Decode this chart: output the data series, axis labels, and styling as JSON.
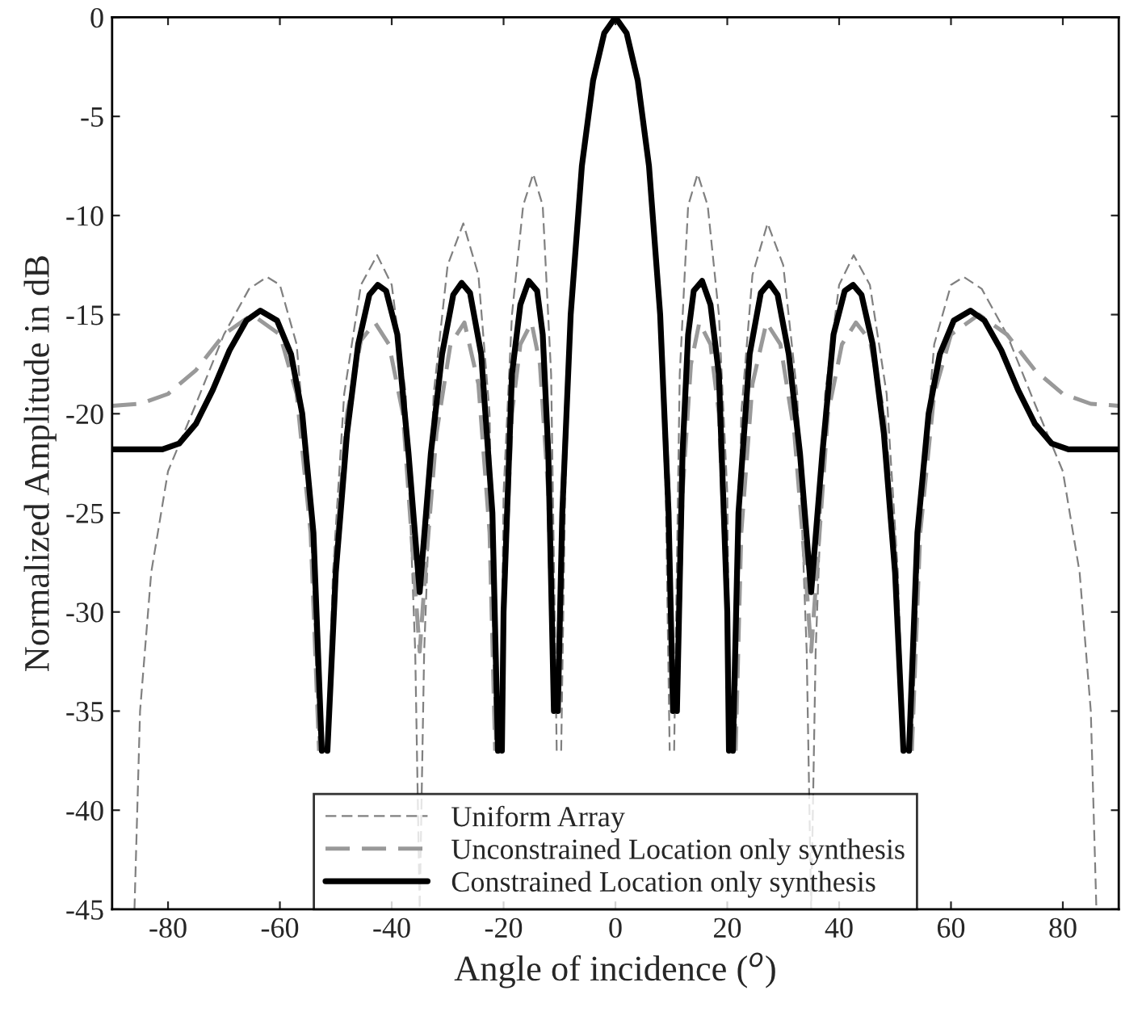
{
  "chart_data": {
    "type": "line",
    "xlabel": "Angle of incidence ($^{o}$)",
    "ylabel": "Normalized Amplitude in dB",
    "xlim": [
      -90,
      90
    ],
    "ylim": [
      -45,
      0
    ],
    "xticks": [
      -80,
      -60,
      -40,
      -20,
      0,
      20,
      40,
      60,
      80
    ],
    "yticks": [
      -45,
      -40,
      -35,
      -30,
      -25,
      -20,
      -15,
      -10,
      -5,
      0
    ],
    "grid": false,
    "legend": "bottom",
    "series": [
      {
        "name": "Uniform Array",
        "color": "#808080",
        "line_style": "dashed",
        "x": [
          -86,
          -85,
          -83,
          -80,
          -75,
          -70,
          -65.5,
          -62.3,
          -60,
          -57,
          -54.5,
          -53,
          -52.2,
          -51.5,
          -50.5,
          -48.5,
          -45.5,
          -42.6,
          -40,
          -37.5,
          -35.8,
          -35,
          -34.2,
          -32.5,
          -30,
          -27.2,
          -24.5,
          -22.5,
          -21.5,
          -21,
          -20.5,
          -20,
          -18.5,
          -16.5,
          -14.7,
          -13,
          -11.5,
          -10.5,
          -10.1,
          -9.7,
          -9,
          -8,
          -6,
          -4,
          -2,
          0,
          2,
          4,
          6,
          8,
          9,
          9.7,
          10.1,
          10.5,
          11.5,
          13,
          14.7,
          16.5,
          18.5,
          20,
          20.5,
          21,
          21.5,
          22.5,
          24.5,
          27.2,
          30,
          32.5,
          34.2,
          35,
          35.8,
          37.5,
          40,
          42.6,
          45.5,
          48.5,
          50.5,
          51.5,
          52.2,
          53,
          54.5,
          57,
          60,
          62.3,
          65.5,
          70,
          75,
          80,
          83,
          85,
          86
        ],
        "values": [
          -45,
          -35,
          -28,
          -22.9,
          -19.5,
          -16,
          -13.7,
          -13.1,
          -13.5,
          -16.5,
          -25,
          -37,
          null,
          -37,
          -28,
          -19,
          -13.5,
          -12,
          -13.5,
          -19,
          -32,
          -45,
          -32,
          -19,
          -12.5,
          -10.4,
          -13,
          -20,
          -37,
          null,
          -37,
          -24,
          -15,
          -9.5,
          -7.9,
          -9.5,
          -18,
          -37,
          null,
          -37,
          -24,
          -16,
          -8,
          -3.5,
          -0.9,
          0,
          -0.9,
          -3.5,
          -8,
          -16,
          -24,
          -37,
          null,
          -37,
          -18,
          -9.5,
          -7.9,
          -9.5,
          -15,
          -24,
          -37,
          null,
          -37,
          -20,
          -13,
          -10.4,
          -12.5,
          -19,
          -32,
          -45,
          -32,
          -19,
          -13.5,
          -12,
          -13.5,
          -19,
          -28,
          -37,
          null,
          -37,
          -25,
          -16.5,
          -13.5,
          -13.1,
          -13.7,
          -16,
          -19.5,
          -22.9,
          -28,
          -35,
          -45
        ]
      },
      {
        "name": "Unconstrained Location only synthesis",
        "color": "#999999",
        "line_style": "dashed",
        "x": [
          -90,
          -85,
          -80,
          -75,
          -70,
          -65,
          -60,
          -57,
          -54.5,
          -53,
          -52.2,
          -51.5,
          -50,
          -48,
          -45.5,
          -43,
          -40.5,
          -38,
          -36,
          -35,
          -34,
          -32,
          -29.5,
          -27,
          -24.5,
          -22.5,
          -21.5,
          -21,
          -20.5,
          -20,
          -18.5,
          -17,
          -15,
          -13.5,
          -12,
          -11,
          -10.6,
          -10.2,
          -9.5,
          -8,
          -6,
          -4,
          -2,
          0,
          2,
          4,
          6,
          8,
          9.5,
          10.2,
          10.6,
          11,
          12,
          13.5,
          15,
          17,
          18.5,
          20,
          20.5,
          21,
          21.5,
          22.5,
          24.5,
          27,
          29.5,
          32,
          34,
          35,
          36,
          38,
          40.5,
          43,
          45.5,
          48,
          50,
          51.5,
          52.2,
          53,
          54.5,
          57,
          60,
          65,
          70,
          75,
          80,
          85,
          90
        ],
        "values": [
          -19.6,
          -19.5,
          -19,
          -17.8,
          -16,
          -15,
          -16,
          -19,
          -26,
          -37,
          null,
          -37,
          -27,
          -20,
          -16.3,
          -15.4,
          -16.5,
          -20,
          -28,
          -32,
          -28,
          -21,
          -16.5,
          -15.4,
          -18.5,
          -26,
          -37,
          null,
          -37,
          -30,
          -20,
          -16.5,
          -15.4,
          -17.5,
          -24,
          -35,
          null,
          -35,
          -24,
          -15,
          -7.5,
          -3.2,
          -0.8,
          0,
          -0.8,
          -3.2,
          -7.5,
          -15,
          -24,
          -35,
          null,
          -35,
          -24,
          -17.5,
          -15.4,
          -16.5,
          -20,
          -30,
          -37,
          null,
          -37,
          -26,
          -18.5,
          -15.4,
          -16.5,
          -21,
          -28,
          -32,
          -28,
          -20,
          -16.5,
          -15.4,
          -16.3,
          -20,
          -27,
          -37,
          null,
          -37,
          -26,
          -19,
          -16,
          -15,
          -16,
          -17.8,
          -19,
          -19.5,
          -19.6
        ]
      },
      {
        "name": "Constrained Location only synthesis",
        "color": "#000000",
        "line_style": "solid",
        "x": [
          -90,
          -85,
          -81,
          -78,
          -75,
          -72,
          -69,
          -66,
          -63.5,
          -60.5,
          -58,
          -56,
          -54,
          -52.5,
          -52,
          -51.5,
          -50,
          -48,
          -46,
          -44,
          -42.5,
          -41,
          -39,
          -37,
          -35,
          -33,
          -31,
          -29,
          -27.5,
          -26,
          -24,
          -22,
          -21,
          -20.6,
          -20.3,
          -20,
          -18.5,
          -17,
          -15.5,
          -14,
          -13,
          -12,
          -11,
          -10.5,
          -10.3,
          -9.5,
          -8,
          -6,
          -4,
          -2,
          0,
          2,
          4,
          6,
          8,
          9.5,
          10.3,
          10.5,
          11,
          12,
          13,
          14,
          15.5,
          17,
          18.5,
          20,
          20.3,
          20.6,
          21,
          22,
          24,
          26,
          27.5,
          29,
          31,
          33,
          35,
          37,
          39,
          41,
          42.5,
          44,
          46,
          48,
          50,
          51.5,
          52,
          52.5,
          54,
          56,
          58,
          60.5,
          63.5,
          66,
          69,
          72,
          75,
          78,
          81,
          85,
          90
        ],
        "values": [
          -21.8,
          -21.8,
          -21.8,
          -21.5,
          -20.5,
          -18.8,
          -16.8,
          -15.3,
          -14.8,
          -15.3,
          -17,
          -20,
          -26,
          -37,
          null,
          -37,
          -28,
          -21,
          -16.5,
          -14,
          -13.5,
          -13.8,
          -16,
          -22,
          -29,
          -22,
          -17,
          -14,
          -13.4,
          -13.9,
          -17,
          -25,
          -37,
          null,
          -37,
          -30,
          -18,
          -14.5,
          -13.3,
          -13.8,
          -16,
          -22,
          -35,
          null,
          -35,
          -25,
          -15,
          -7.5,
          -3.2,
          -0.8,
          0,
          -0.8,
          -3.2,
          -7.5,
          -15,
          -25,
          -35,
          null,
          -35,
          -22,
          -16,
          -13.8,
          -13.3,
          -14.5,
          -18,
          -30,
          -37,
          null,
          -37,
          -25,
          -17,
          -13.9,
          -13.4,
          -14,
          -17,
          -22,
          -29,
          -22,
          -16,
          -13.8,
          -13.5,
          -14,
          -16.5,
          -21,
          -28,
          -37,
          null,
          -37,
          -26,
          -20,
          -17,
          -15.3,
          -14.8,
          -15.3,
          -16.8,
          -18.8,
          -20.5,
          -21.5,
          -21.8,
          -21.8,
          -21.8
        ]
      }
    ]
  }
}
